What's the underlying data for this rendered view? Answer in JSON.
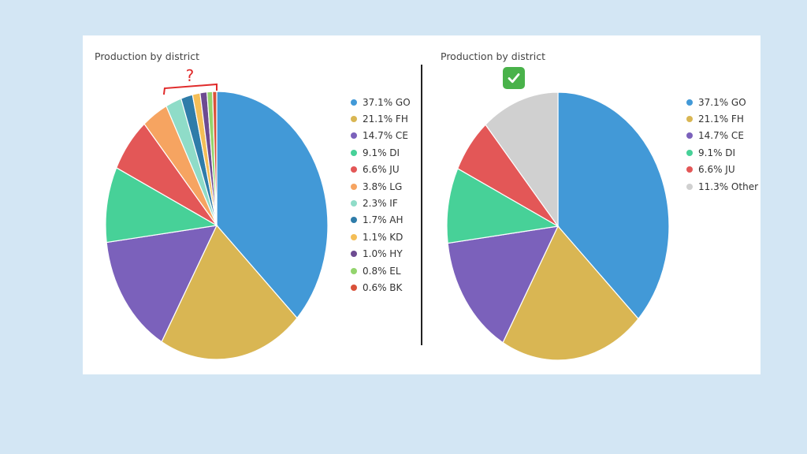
{
  "chart_data": [
    {
      "type": "pie",
      "title": "Production by district",
      "slices": [
        {
          "label": "37.1% GO",
          "value": 37.1,
          "color": "#4299d7"
        },
        {
          "label": "21.1% FH",
          "value": 21.1,
          "color": "#d9b653"
        },
        {
          "label": "14.7% CE",
          "value": 14.7,
          "color": "#7b61bb"
        },
        {
          "label": "9.1% DI",
          "value": 9.1,
          "color": "#47d198"
        },
        {
          "label": "6.6% JU",
          "value": 6.6,
          "color": "#e35757"
        },
        {
          "label": "3.8% LG",
          "value": 3.8,
          "color": "#f6a461"
        },
        {
          "label": "2.3% IF",
          "value": 2.3,
          "color": "#8fdcc8"
        },
        {
          "label": "1.7% AH",
          "value": 1.7,
          "color": "#2f7ca9"
        },
        {
          "label": "1.1% KD",
          "value": 1.1,
          "color": "#f4be57"
        },
        {
          "label": "1.0% HY",
          "value": 1.0,
          "color": "#6d4b91"
        },
        {
          "label": "0.8% EL",
          "value": 0.8,
          "color": "#93d46d"
        },
        {
          "label": "0.6% BK",
          "value": 0.6,
          "color": "#d9513a"
        }
      ],
      "annotation": "?",
      "annotation_color": "#e02b2b"
    },
    {
      "type": "pie",
      "title": "Production by district",
      "slices": [
        {
          "label": "37.1% GO",
          "value": 37.1,
          "color": "#4299d7"
        },
        {
          "label": "21.1% FH",
          "value": 21.1,
          "color": "#d9b653"
        },
        {
          "label": "14.7% CE",
          "value": 14.7,
          "color": "#7b61bb"
        },
        {
          "label": "9.1% DI",
          "value": 9.1,
          "color": "#47d198"
        },
        {
          "label": "6.6% JU",
          "value": 6.6,
          "color": "#e35757"
        },
        {
          "label": "11.3% Other",
          "value": 11.3,
          "color": "#d0d0d0"
        }
      ],
      "annotation": "check-mark-icon",
      "annotation_color": "#49b24a"
    }
  ]
}
